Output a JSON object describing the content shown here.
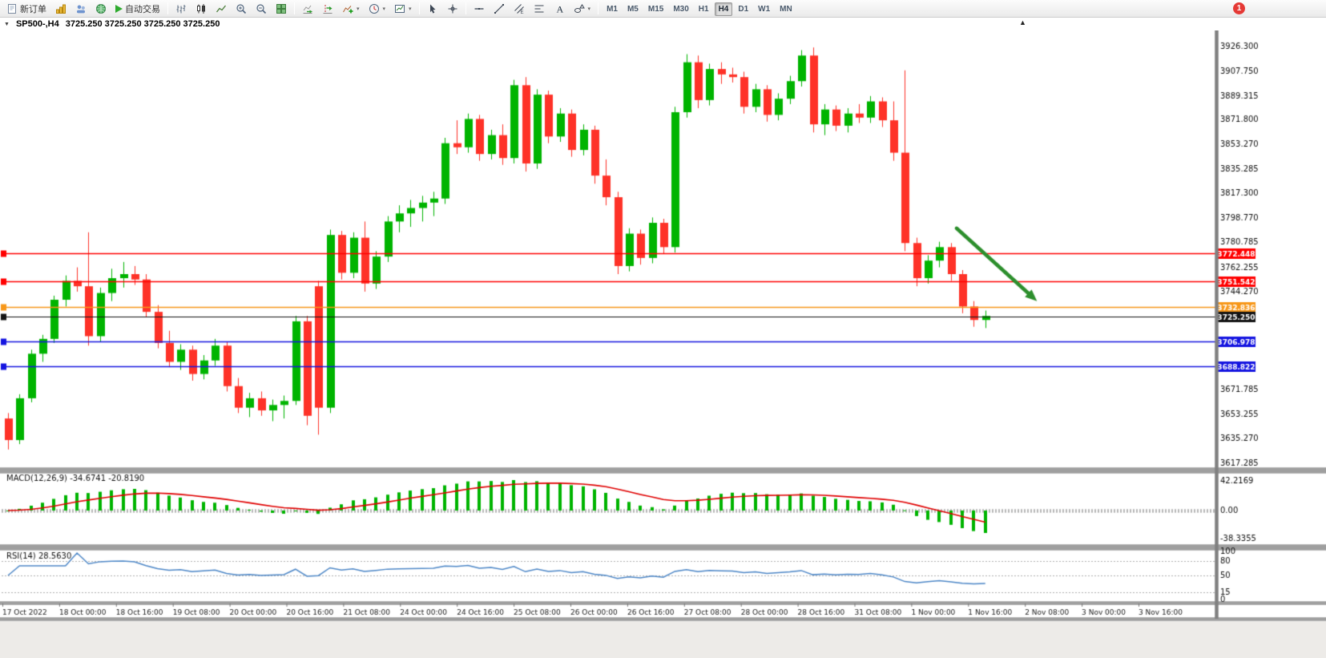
{
  "toolbar": {
    "new_order_label": "新订单",
    "auto_trading_label": "自动交易",
    "timeframes": [
      "M1",
      "M5",
      "M15",
      "M30",
      "H1",
      "H4",
      "D1",
      "W1",
      "MN"
    ],
    "active_timeframe": "H4",
    "notification_count": "1"
  },
  "title_bar": {
    "symbol_period": "SP500-,H4",
    "ohlc": "3725.250 3725.250 3725.250 3725.250"
  },
  "chart_data": {
    "type": "candlestick",
    "symbol": "SP500-",
    "timeframe": "H4",
    "x_labels": [
      "17 Oct 2022",
      "18 Oct 00:00",
      "18 Oct 16:00",
      "19 Oct 08:00",
      "20 Oct 00:00",
      "20 Oct 16:00",
      "21 Oct 08:00",
      "24 Oct 00:00",
      "24 Oct 16:00",
      "25 Oct 08:00",
      "26 Oct 00:00",
      "26 Oct 16:00",
      "27 Oct 08:00",
      "28 Oct 00:00",
      "28 Oct 16:00",
      "31 Oct 08:00",
      "1 Nov 00:00",
      "1 Nov 16:00",
      "2 Nov 08:00",
      "3 Nov 00:00",
      "3 Nov 16:00"
    ],
    "y_axis_labels": [
      "3926.300",
      "3907.750",
      "3889.315",
      "3871.800",
      "3853.270",
      "3835.285",
      "3817.300",
      "3798.770",
      "3780.785",
      "3762.255",
      "3744.270",
      "3671.785",
      "3653.255",
      "3635.270",
      "3617.285"
    ],
    "candles": [
      [
        3650,
        3654,
        3627,
        3634
      ],
      [
        3634,
        3668,
        3631,
        3665
      ],
      [
        3665,
        3701,
        3662,
        3698
      ],
      [
        3698,
        3712,
        3692,
        3709
      ],
      [
        3709,
        3741,
        3706,
        3738
      ],
      [
        3738,
        3756,
        3733,
        3752
      ],
      [
        3752,
        3762,
        3744,
        3748
      ],
      [
        3748,
        3788,
        3704,
        3711
      ],
      [
        3711,
        3747,
        3707,
        3743
      ],
      [
        3743,
        3761,
        3737,
        3754
      ],
      [
        3754,
        3766,
        3747,
        3757
      ],
      [
        3757,
        3763,
        3749,
        3753
      ],
      [
        3753,
        3757,
        3725,
        3729
      ],
      [
        3729,
        3734,
        3702,
        3706
      ],
      [
        3706,
        3715,
        3688,
        3692
      ],
      [
        3692,
        3705,
        3686,
        3701
      ],
      [
        3701,
        3704,
        3678,
        3683
      ],
      [
        3683,
        3697,
        3679,
        3693
      ],
      [
        3693,
        3709,
        3689,
        3704
      ],
      [
        3704,
        3707,
        3670,
        3674
      ],
      [
        3674,
        3680,
        3654,
        3658
      ],
      [
        3658,
        3669,
        3651,
        3665
      ],
      [
        3665,
        3670,
        3652,
        3656
      ],
      [
        3656,
        3664,
        3648,
        3660
      ],
      [
        3660,
        3667,
        3650,
        3663
      ],
      [
        3663,
        3726,
        3660,
        3722
      ],
      [
        3722,
        3726,
        3645,
        3652
      ],
      [
        3748,
        3752,
        3638,
        3658
      ],
      [
        3658,
        3790,
        3654,
        3786
      ],
      [
        3786,
        3789,
        3753,
        3758
      ],
      [
        3758,
        3788,
        3754,
        3784
      ],
      [
        3784,
        3796,
        3744,
        3750
      ],
      [
        3750,
        3774,
        3746,
        3770
      ],
      [
        3770,
        3800,
        3766,
        3796
      ],
      [
        3796,
        3808,
        3788,
        3802
      ],
      [
        3802,
        3812,
        3792,
        3806
      ],
      [
        3806,
        3815,
        3796,
        3810
      ],
      [
        3810,
        3818,
        3800,
        3813
      ],
      [
        3813,
        3858,
        3809,
        3854
      ],
      [
        3854,
        3871,
        3846,
        3851
      ],
      [
        3851,
        3876,
        3847,
        3872
      ],
      [
        3872,
        3875,
        3841,
        3846
      ],
      [
        3846,
        3864,
        3842,
        3860
      ],
      [
        3860,
        3868,
        3838,
        3843
      ],
      [
        3843,
        3901,
        3839,
        3897
      ],
      [
        3897,
        3903,
        3833,
        3839
      ],
      [
        3839,
        3894,
        3835,
        3890
      ],
      [
        3890,
        3893,
        3854,
        3859
      ],
      [
        3859,
        3880,
        3855,
        3876
      ],
      [
        3876,
        3879,
        3844,
        3849
      ],
      [
        3849,
        3868,
        3845,
        3864
      ],
      [
        3864,
        3867,
        3824,
        3830
      ],
      [
        3830,
        3842,
        3808,
        3814
      ],
      [
        3814,
        3818,
        3757,
        3763
      ],
      [
        3763,
        3791,
        3759,
        3787
      ],
      [
        3787,
        3790,
        3764,
        3769
      ],
      [
        3769,
        3799,
        3765,
        3795
      ],
      [
        3795,
        3798,
        3772,
        3777
      ],
      [
        3777,
        3881,
        3773,
        3877
      ],
      [
        3877,
        3920,
        3873,
        3914
      ],
      [
        3914,
        3919,
        3880,
        3886
      ],
      [
        3886,
        3913,
        3882,
        3909
      ],
      [
        3909,
        3914,
        3898,
        3905
      ],
      [
        3905,
        3910,
        3899,
        3903
      ],
      [
        3903,
        3907,
        3876,
        3881
      ],
      [
        3881,
        3898,
        3877,
        3894
      ],
      [
        3894,
        3897,
        3870,
        3875
      ],
      [
        3875,
        3891,
        3871,
        3887
      ],
      [
        3887,
        3904,
        3883,
        3900
      ],
      [
        3900,
        3923,
        3896,
        3919
      ],
      [
        3919,
        3925,
        3862,
        3868
      ],
      [
        3868,
        3883,
        3860,
        3879
      ],
      [
        3879,
        3882,
        3863,
        3867
      ],
      [
        3867,
        3880,
        3862,
        3876
      ],
      [
        3876,
        3883,
        3869,
        3873
      ],
      [
        3873,
        3889,
        3869,
        3885
      ],
      [
        3885,
        3888,
        3866,
        3871
      ],
      [
        3871,
        3885,
        3841,
        3847
      ],
      [
        3847,
        3908,
        3774,
        3780
      ],
      [
        3780,
        3784,
        3748,
        3754
      ],
      [
        3754,
        3771,
        3750,
        3767
      ],
      [
        3767,
        3781,
        3762,
        3777
      ],
      [
        3777,
        3780,
        3752,
        3757
      ],
      [
        3757,
        3760,
        3728,
        3733
      ],
      [
        3733,
        3737,
        3718,
        3723
      ],
      [
        3723,
        3730,
        3717,
        3726
      ]
    ],
    "hlines": [
      {
        "price": 3772.448,
        "label": "3772.448",
        "color": "#ff0000",
        "current": false
      },
      {
        "price": 3751.542,
        "label": "3751.542",
        "color": "#ff0000",
        "current": false
      },
      {
        "price": 3732.836,
        "label": "3732.836",
        "color": "#f79719",
        "current": false
      },
      {
        "price": 3725.25,
        "label": "3725.250",
        "color": "#141414",
        "current": true
      },
      {
        "price": 3706.978,
        "label": "3706.978",
        "color": "#1414e0",
        "current": false
      },
      {
        "price": 3688.822,
        "label": "3688.822",
        "color": "#1414e0",
        "current": false
      }
    ],
    "current_price": "3725.250",
    "arrow_annotation": {
      "from_bar": 82.5,
      "from_price": 3791,
      "to_bar": 89.5,
      "to_price": 3737,
      "color": "#2d8f2d"
    },
    "indicators": {
      "macd": {
        "label": "MACD(12,26,9)",
        "value_main": "-34.6741",
        "value_signal": "-20.8190",
        "axis_labels": [
          "42.2169",
          "0.00",
          "-38.3355"
        ],
        "fast": 12,
        "slow": 26,
        "signal": 9
      },
      "rsi": {
        "label": "RSI(14)",
        "value": "28.5630",
        "axis_labels": [
          "100",
          "80",
          "50",
          "15",
          "0"
        ],
        "levels": [
          80,
          50,
          15
        ],
        "period": 14
      }
    }
  },
  "colors": {
    "bull": "#00b400",
    "bear": "#fe3228",
    "macd_histogram": "#00b400",
    "macd_signal": "#e00000",
    "rsi_line": "#4d87c7",
    "axis_text": "#111111"
  }
}
